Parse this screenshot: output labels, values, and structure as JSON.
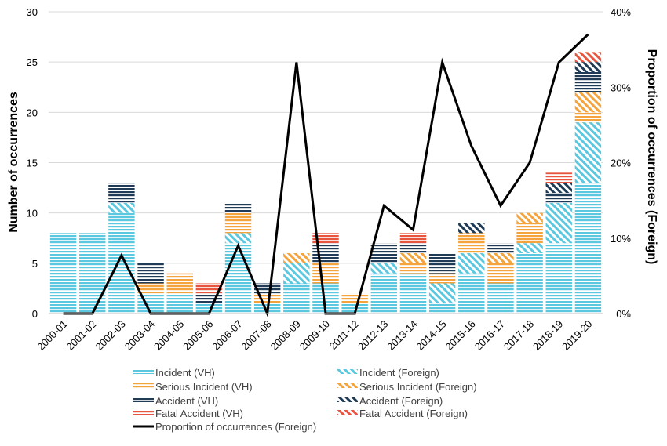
{
  "colors": {
    "incident": "#5bc8e0",
    "serious": "#f5a33c",
    "accident": "#1f3b55",
    "fatal": "#e8553e",
    "line": "#000000",
    "grid": "#d9d9d9"
  },
  "chart_data": {
    "type": "bar",
    "stacked": true,
    "categories": [
      "2000-01",
      "2001-02",
      "2002-03",
      "2003-04",
      "2004-05",
      "2005-06",
      "2006-07",
      "2007-08",
      "2008-09",
      "2009-10",
      "2011-12",
      "2012-13",
      "2013-14",
      "2014-15",
      "2015-16",
      "2016-17",
      "2017-18",
      "2018-19",
      "2019-20"
    ],
    "ylabel": "Number of occurrences",
    "y2label": "Proportion of occurrences (Foreign)",
    "ylim": [
      0,
      30
    ],
    "y2lim": [
      0,
      0.4
    ],
    "yticks": [
      "0",
      "5",
      "10",
      "15",
      "20",
      "25",
      "30"
    ],
    "y2ticks": [
      "0%",
      "10%",
      "20%",
      "30%",
      "40%"
    ],
    "grid": "horizontal",
    "legend_position": "bottom",
    "series": [
      {
        "name": "Incident (VH)",
        "pattern": "solid",
        "color": "incident",
        "values": [
          8,
          8,
          10,
          2,
          2,
          1,
          7,
          1,
          3,
          3,
          1,
          4,
          4,
          1,
          4,
          3,
          6,
          7,
          13
        ]
      },
      {
        "name": "Incident (Foreign)",
        "pattern": "hatched",
        "color": "incident",
        "values": [
          0,
          0,
          1,
          0,
          0,
          0,
          1,
          0,
          2,
          0,
          0,
          1,
          0,
          2,
          2,
          0,
          1,
          4,
          6
        ]
      },
      {
        "name": "Serious Incident (VH)",
        "pattern": "solid",
        "color": "serious",
        "values": [
          0,
          0,
          0,
          1,
          2,
          0,
          2,
          1,
          0,
          2,
          1,
          0,
          1,
          1,
          2,
          2,
          2,
          0,
          1
        ]
      },
      {
        "name": "Serious Incident (Foreign)",
        "pattern": "hatched",
        "color": "serious",
        "values": [
          0,
          0,
          0,
          0,
          0,
          0,
          0,
          0,
          1,
          0,
          0,
          0,
          1,
          0,
          0,
          1,
          1,
          0,
          2
        ]
      },
      {
        "name": "Accident (VH)",
        "pattern": "solid",
        "color": "accident",
        "values": [
          0,
          0,
          2,
          2,
          0,
          1,
          1,
          1,
          0,
          2,
          0,
          2,
          1,
          2,
          0,
          1,
          0,
          1,
          2
        ]
      },
      {
        "name": "Accident (Foreign)",
        "pattern": "hatched",
        "color": "accident",
        "values": [
          0,
          0,
          0,
          0,
          0,
          0,
          0,
          0,
          0,
          0,
          0,
          0,
          0,
          0,
          1,
          0,
          0,
          1,
          1
        ]
      },
      {
        "name": "Fatal Accident (VH)",
        "pattern": "solid",
        "color": "fatal",
        "values": [
          0,
          0,
          0,
          0,
          0,
          1,
          0,
          0,
          0,
          1,
          0,
          0,
          1,
          0,
          0,
          0,
          0,
          1,
          0
        ]
      },
      {
        "name": "Fatal Accident (Foreign)",
        "pattern": "hatched",
        "color": "fatal",
        "values": [
          0,
          0,
          0,
          0,
          0,
          0,
          0,
          0,
          0,
          0,
          0,
          0,
          0,
          0,
          0,
          0,
          0,
          0,
          1
        ]
      }
    ],
    "line_series": {
      "name": "Proportion of occurrences (Foreign)",
      "axis": "secondary",
      "values": [
        0,
        0,
        0.077,
        0,
        0,
        0,
        0.09,
        0,
        0.333,
        0,
        0,
        0.143,
        0.111,
        0.333,
        0.222,
        0.143,
        0.2,
        0.333,
        0.37
      ]
    }
  }
}
